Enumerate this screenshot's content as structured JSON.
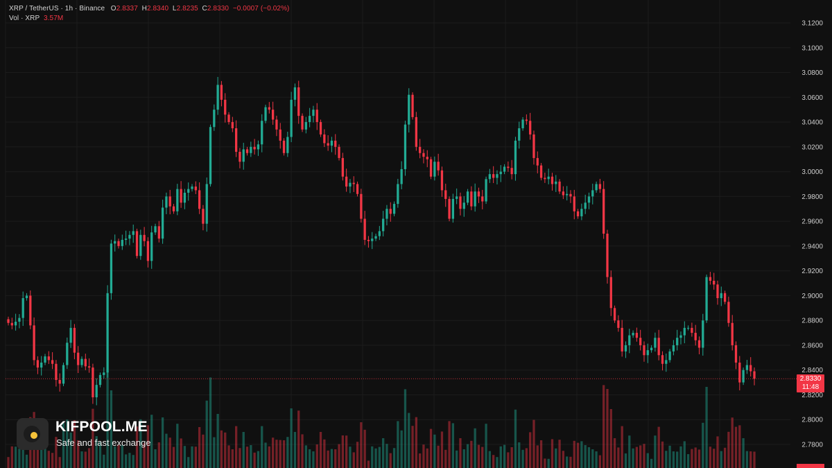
{
  "header": {
    "symbol": "XRP / TetherUS · 1h · Binance",
    "o_label": "O",
    "o_value": "2.8337",
    "h_label": "H",
    "h_value": "2.8340",
    "l_label": "L",
    "l_value": "2.8235",
    "c_label": "C",
    "c_value": "2.8330",
    "change": "−0.0007 (−0.02%)",
    "vol_label": "Vol · XRP",
    "vol_value": "3.57M"
  },
  "price_label": {
    "price": "2.8330",
    "countdown": "11:48"
  },
  "brand": {
    "name": "KIFPOOL.ME",
    "tagline": "Safe and fast exchange"
  },
  "colors": {
    "up": "#22ab94",
    "down": "#f23645",
    "background": "#101010",
    "grid": "#1c1c1c"
  },
  "chart_data": {
    "type": "candlestick",
    "symbol": "XRP / TetherUS",
    "interval": "1h",
    "exchange": "Binance",
    "ylim": [
      2.77,
      3.12
    ],
    "y_ticks": [
      "3.1200",
      "3.1000",
      "3.0800",
      "3.0600",
      "3.0400",
      "3.0200",
      "3.0000",
      "2.9800",
      "2.9600",
      "2.9400",
      "2.9200",
      "2.9000",
      "2.8800",
      "2.8600",
      "2.8400",
      "2.8200",
      "2.8000",
      "2.7800"
    ],
    "last_price": 2.833,
    "closes": [
      2.878,
      2.876,
      2.879,
      2.882,
      2.898,
      2.9,
      2.876,
      2.848,
      2.842,
      2.846,
      2.851,
      2.848,
      2.845,
      2.832,
      2.829,
      2.844,
      2.862,
      2.874,
      2.854,
      2.844,
      2.849,
      2.843,
      2.842,
      2.818,
      2.828,
      2.836,
      2.838,
      2.902,
      2.942,
      2.944,
      2.94,
      2.945,
      2.946,
      2.949,
      2.952,
      2.932,
      2.949,
      2.944,
      2.928,
      2.951,
      2.956,
      2.946,
      2.971,
      2.98,
      2.972,
      2.968,
      2.986,
      2.975,
      2.983,
      2.986,
      2.988,
      2.985,
      2.97,
      2.958,
      2.99,
      3.036,
      3.05,
      3.07,
      3.058,
      3.046,
      3.04,
      3.035,
      3.016,
      3.008,
      3.018,
      3.015,
      3.02,
      3.018,
      3.022,
      3.041,
      3.052,
      3.05,
      3.042,
      3.034,
      3.025,
      3.015,
      3.028,
      3.058,
      3.068,
      3.045,
      3.034,
      3.04,
      3.045,
      3.05,
      3.04,
      3.03,
      3.023,
      3.021,
      3.025,
      3.02,
      3.011,
      2.996,
      2.988,
      2.991,
      2.99,
      2.982,
      2.962,
      2.945,
      2.944,
      2.946,
      2.948,
      2.952,
      2.962,
      2.97,
      2.966,
      2.974,
      2.99,
      3.002,
      3.038,
      3.062,
      3.044,
      3.02,
      3.015,
      3.012,
      3.01,
      2.996,
      3.008,
      3.001,
      2.985,
      2.978,
      2.962,
      2.978,
      2.98,
      2.97,
      2.975,
      2.984,
      2.972,
      2.984,
      2.98,
      2.976,
      2.994,
      2.998,
      2.995,
      2.998,
      3.0,
      3.004,
      3.003,
      2.998,
      3.025,
      3.035,
      3.042,
      3.041,
      3.03,
      3.011,
      3.005,
      2.995,
      2.994,
      2.996,
      2.99,
      2.992,
      2.984,
      2.981,
      2.982,
      2.98,
      2.968,
      2.964,
      2.97,
      2.975,
      2.98,
      2.985,
      2.99,
      2.986,
      2.95,
      2.915,
      2.89,
      2.88,
      2.874,
      2.855,
      2.86,
      2.868,
      2.87,
      2.866,
      2.86,
      2.852,
      2.856,
      2.858,
      2.866,
      2.852,
      2.845,
      2.848,
      2.855,
      2.86,
      2.866,
      2.868,
      2.874,
      2.874,
      2.87,
      2.864,
      2.858,
      2.88,
      2.915,
      2.912,
      2.909,
      2.898,
      2.902,
      2.895,
      2.878,
      2.86,
      2.846,
      2.83,
      2.84,
      2.844,
      2.839,
      2.833
    ],
    "xlabel": "",
    "ylabel": ""
  }
}
